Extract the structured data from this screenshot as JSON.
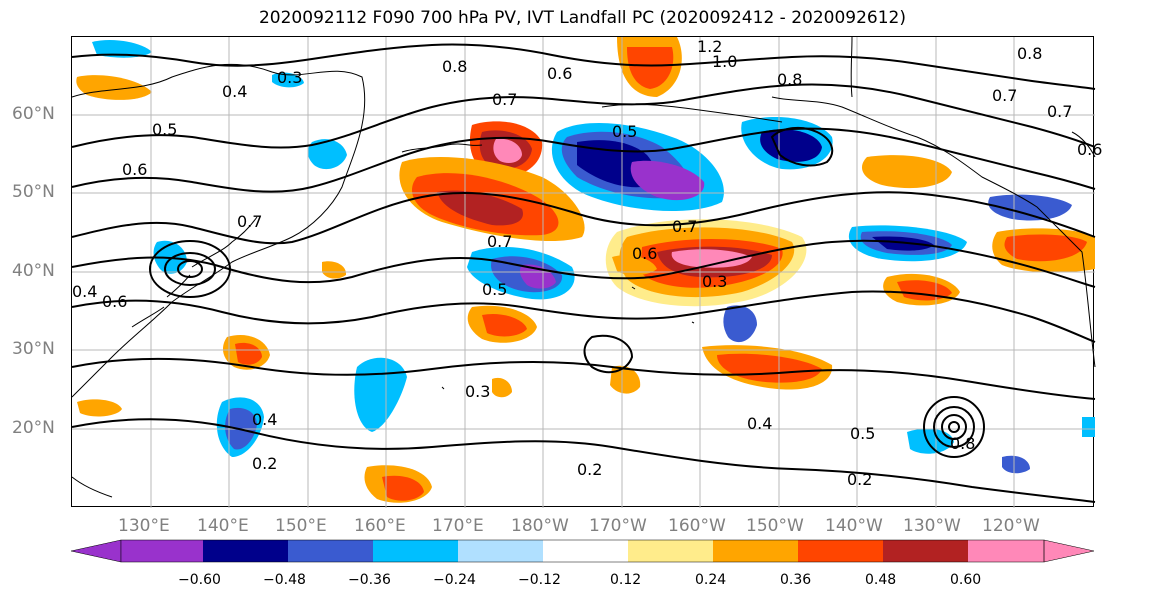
{
  "title": "2020092112 F090 700 hPa PV, IVT Landfall PC (2020092412 - 2020092612)",
  "lat_labels": [
    "60°N",
    "50°N",
    "40°N",
    "30°N",
    "20°N"
  ],
  "lon_labels": [
    "130°E",
    "140°E",
    "150°E",
    "160°E",
    "170°E",
    "180°W",
    "170°W",
    "160°W",
    "150°W",
    "140°W",
    "130°W",
    "120°W"
  ],
  "contour_labels": [
    "0.3",
    "0.4",
    "0.5",
    "0.6",
    "0.7",
    "0.8",
    "0.6",
    "0.5",
    "0.7",
    "1.2",
    "1.0",
    "0.8",
    "0.7",
    "0.8",
    "0.7",
    "0.6",
    "0.7",
    "0.7",
    "0.6",
    "0.5",
    "0.3",
    "0.4",
    "0.4",
    "0.2",
    "0.3",
    "0.2",
    "0.4",
    "0.5",
    "0.2",
    "0.8",
    "0.6"
  ],
  "colorbar": {
    "ticks": [
      "−0.60",
      "−0.48",
      "−0.36",
      "−0.24",
      "−0.12",
      "0.12",
      "0.24",
      "0.36",
      "0.48",
      "0.60"
    ],
    "colors": [
      "#9932cc",
      "#00008b",
      "#3a5bd0",
      "#00bfff",
      "#b0e0ff",
      "#ffffff",
      "#ffec8b",
      "#ffa500",
      "#ff4500",
      "#b22222",
      "#ff88b8"
    ]
  }
}
